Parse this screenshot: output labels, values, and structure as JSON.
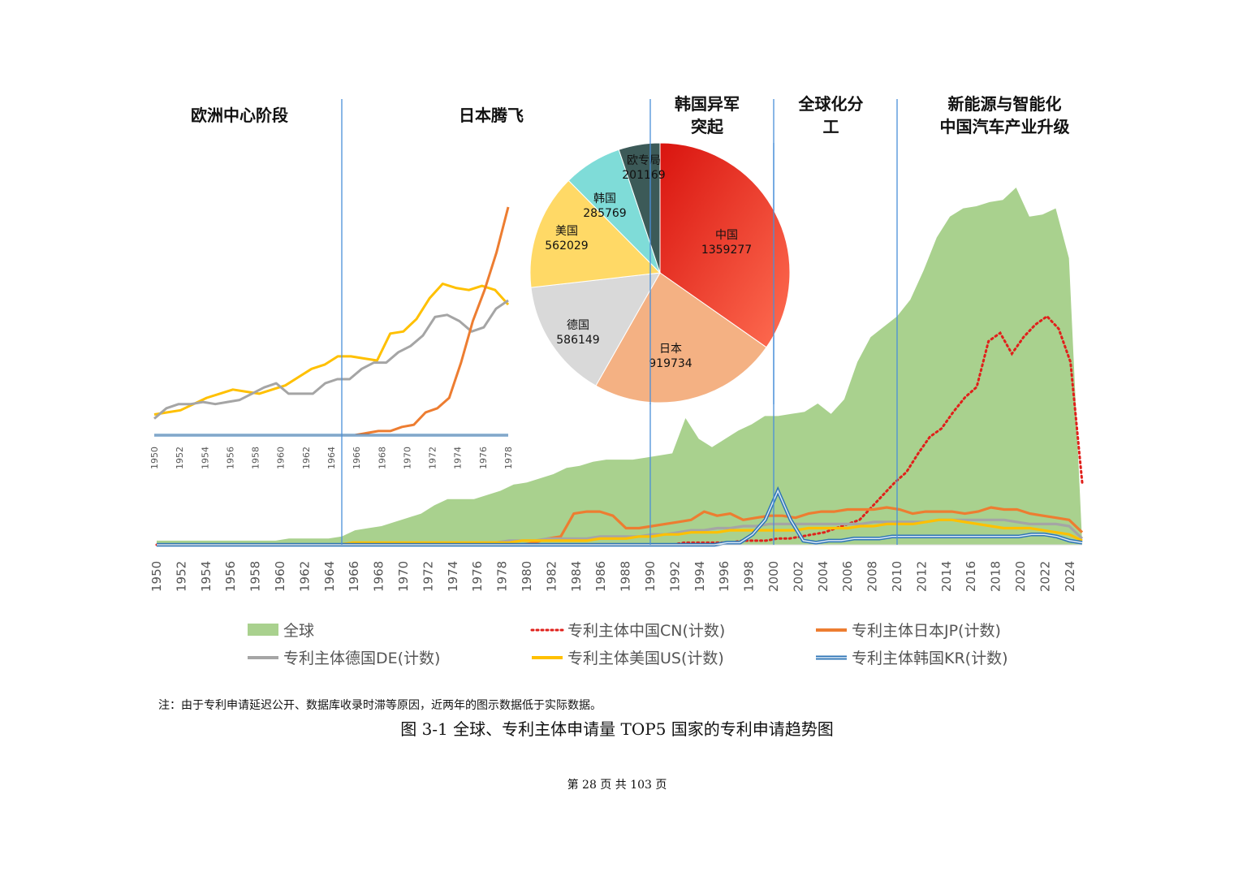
{
  "eras": [
    {
      "label": "欧洲中心阶段"
    },
    {
      "label": "日本腾飞"
    },
    {
      "label": "韩国异军\n突起"
    },
    {
      "label": "全球化分\n工"
    },
    {
      "label": "新能源与智能化\n中国汽车产业升级"
    }
  ],
  "note": "注：由于专利申请延迟公开、数据库收录时滞等原因，近两年的图示数据低于实际数据。",
  "caption": "图 3-1  全球、专利主体申请量 TOP5 国家的专利申请趋势图",
  "footer": "第  28  页  共  103  页",
  "chart_data": [
    {
      "type": "area",
      "x_tick_labels": [
        "1950",
        "1952",
        "1954",
        "1956",
        "1958",
        "1960",
        "1962",
        "1964",
        "1966",
        "1968",
        "1970",
        "1972",
        "1974",
        "1976",
        "1978",
        "1980",
        "1982",
        "1984",
        "1986",
        "1988",
        "1990",
        "1992",
        "1994",
        "1996",
        "1998",
        "2000",
        "2002",
        "2004",
        "2006",
        "2008",
        "2010",
        "2012",
        "2014",
        "2016",
        "2018",
        "2020",
        "2022",
        "2024"
      ],
      "x_start": 1950,
      "x_end": 2025,
      "era_dividers": [
        1965,
        1990,
        2000,
        2010
      ],
      "y_axis_shown": false,
      "series": [
        {
          "name": "全球",
          "kind": "area",
          "color": "#a9d18e",
          "values": [
            2,
            2,
            2,
            2,
            2,
            2,
            2,
            2,
            2,
            2,
            3,
            3,
            3,
            3,
            4,
            7,
            8,
            9,
            11,
            13,
            15,
            19,
            22,
            22,
            22,
            24,
            26,
            29,
            30,
            32,
            34,
            37,
            38,
            40,
            41,
            41,
            41,
            42,
            43,
            44,
            61,
            51,
            47,
            51,
            55,
            58,
            62,
            62,
            63,
            64,
            68,
            63,
            70,
            88,
            100,
            105,
            110,
            118,
            132,
            148,
            158,
            162,
            163,
            165,
            166,
            172,
            158,
            159,
            162,
            138,
            1
          ]
        },
        {
          "name": "专利主体中国CN(计数)",
          "kind": "dotted-line",
          "color": "#e0201b",
          "values": [
            0,
            0,
            0,
            0,
            0,
            0,
            0,
            0,
            0,
            0,
            0,
            0,
            0,
            0,
            0,
            0,
            0,
            0,
            0,
            0,
            0,
            0,
            0,
            0,
            0,
            0,
            0,
            0,
            0,
            0,
            0,
            0,
            0,
            0,
            0,
            0,
            0,
            0,
            0,
            0,
            0,
            0,
            0,
            0,
            0,
            1,
            1,
            1,
            1,
            1,
            2,
            2,
            2,
            3,
            3,
            4,
            5,
            6,
            8,
            10,
            12,
            18,
            24,
            30,
            35,
            44,
            52,
            56,
            64,
            71,
            76,
            98,
            102,
            92,
            100,
            106,
            110,
            104,
            88,
            30
          ]
        },
        {
          "name": "专利主体日本JP(计数)",
          "kind": "line",
          "color": "#ed7d31",
          "values": [
            0,
            0,
            0,
            0,
            0,
            0,
            0,
            0,
            0,
            0,
            0,
            0,
            0,
            0,
            0,
            0,
            0,
            0,
            0,
            0,
            0,
            0,
            0,
            0,
            0,
            0,
            0,
            0,
            0,
            1,
            3,
            4,
            15,
            16,
            16,
            14,
            8,
            8,
            9,
            10,
            11,
            12,
            16,
            14,
            15,
            12,
            13,
            14,
            14,
            13,
            15,
            16,
            16,
            17,
            17,
            17,
            18,
            17,
            15,
            16,
            16,
            16,
            15,
            16,
            18,
            17,
            17,
            15,
            14,
            13,
            12,
            6
          ]
        },
        {
          "name": "专利主体德国DE(计数)",
          "kind": "line",
          "color": "#a5a5a5",
          "values": [
            0,
            0,
            0,
            0,
            0,
            0,
            0,
            0,
            0,
            0,
            0,
            0,
            0,
            0,
            0,
            0,
            0,
            0,
            0,
            0,
            0,
            0,
            0,
            0,
            0,
            1,
            1,
            2,
            2,
            2,
            3,
            3,
            3,
            3,
            4,
            4,
            4,
            4,
            5,
            5,
            6,
            7,
            7,
            8,
            8,
            9,
            9,
            10,
            10,
            10,
            10,
            10,
            10,
            10,
            10,
            11,
            11,
            11,
            11,
            11,
            12,
            12,
            12,
            12,
            12,
            12,
            11,
            10,
            10,
            10,
            9,
            3
          ]
        },
        {
          "name": "专利主体美国US(计数)",
          "kind": "line",
          "color": "#ffc000",
          "values": [
            0,
            0,
            0,
            0,
            0,
            0,
            0,
            0,
            0,
            0,
            0,
            0,
            0,
            0,
            0,
            1,
            1,
            1,
            1,
            1,
            1,
            1,
            1,
            1,
            1,
            1,
            1,
            1,
            2,
            2,
            2,
            2,
            2,
            2,
            3,
            3,
            3,
            4,
            4,
            5,
            5,
            6,
            6,
            6,
            7,
            7,
            7,
            7,
            7,
            7,
            8,
            8,
            8,
            8,
            9,
            9,
            10,
            10,
            10,
            11,
            12,
            12,
            11,
            10,
            9,
            8,
            8,
            8,
            7,
            6,
            5,
            2
          ]
        },
        {
          "name": "专利主体韩国KR(计数)",
          "kind": "double-line",
          "color": "#2e75b6",
          "values": [
            0,
            0,
            0,
            0,
            0,
            0,
            0,
            0,
            0,
            0,
            0,
            0,
            0,
            0,
            0,
            0,
            0,
            0,
            0,
            0,
            0,
            0,
            0,
            0,
            0,
            0,
            0,
            0,
            0,
            0,
            0,
            0,
            0,
            0,
            0,
            0,
            0,
            0,
            0,
            0,
            0,
            0,
            0,
            0,
            0,
            1,
            1,
            5,
            12,
            26,
            12,
            2,
            1,
            2,
            2,
            3,
            3,
            3,
            4,
            4,
            4,
            4,
            4,
            4,
            4,
            4,
            4,
            4,
            4,
            5,
            5,
            4,
            2,
            1
          ]
        }
      ],
      "legend": {
        "placement": "bottom",
        "columns": 3
      }
    },
    {
      "type": "line",
      "title_inset": "1950-1978",
      "x_tick_labels": [
        "1950",
        "1952",
        "1954",
        "1956",
        "1958",
        "1960",
        "1962",
        "1964",
        "1966",
        "1968",
        "1970",
        "1972",
        "1974",
        "1976",
        "1978"
      ],
      "x_start": 1950,
      "x_end": 1978,
      "y_axis_shown": false,
      "series": [
        {
          "name": "美国",
          "color": "#ffc000",
          "values": [
            10,
            11,
            12,
            15,
            18,
            20,
            22,
            21,
            20,
            22,
            24,
            28,
            32,
            34,
            38,
            38,
            37,
            36,
            49,
            50,
            56,
            66,
            73,
            71,
            70,
            72,
            70,
            63
          ]
        },
        {
          "name": "德国",
          "color": "#a5a5a5",
          "values": [
            8,
            13,
            15,
            15,
            16,
            15,
            16,
            17,
            20,
            23,
            25,
            20,
            20,
            20,
            25,
            27,
            27,
            32,
            35,
            35,
            40,
            43,
            48,
            57,
            58,
            55,
            50,
            52,
            61,
            65
          ]
        },
        {
          "name": "日本",
          "color": "#ed7d31",
          "values": [
            0,
            0,
            0,
            0,
            0,
            0,
            0,
            0,
            0,
            0,
            0,
            0,
            0,
            0,
            0,
            0,
            0,
            0,
            1,
            2,
            2,
            4,
            5,
            11,
            13,
            18,
            35,
            55,
            70,
            88,
            110
          ]
        },
        {
          "name": "韩国",
          "color": "#2e75b6",
          "values": [
            0,
            0,
            0,
            0,
            0,
            0,
            0,
            0,
            0,
            0,
            0,
            0,
            0,
            0,
            0,
            0,
            0,
            0,
            0,
            0,
            0,
            0,
            0,
            0,
            0,
            0,
            0,
            0,
            0
          ]
        }
      ]
    },
    {
      "type": "pie",
      "slices": [
        {
          "label": "中国",
          "value": 1359277,
          "color": "#f0463a"
        },
        {
          "label": "日本",
          "value": 919734,
          "color": "#f4b183"
        },
        {
          "label": "德国",
          "value": 586149,
          "color": "#d9d9d9"
        },
        {
          "label": "美国",
          "value": 562029,
          "color": "#ffd966"
        },
        {
          "label": "韩国",
          "value": 285769,
          "color": "#7fdcd8"
        },
        {
          "label": "欧专局",
          "value": 201169,
          "color": "#3c5a58"
        }
      ]
    }
  ]
}
